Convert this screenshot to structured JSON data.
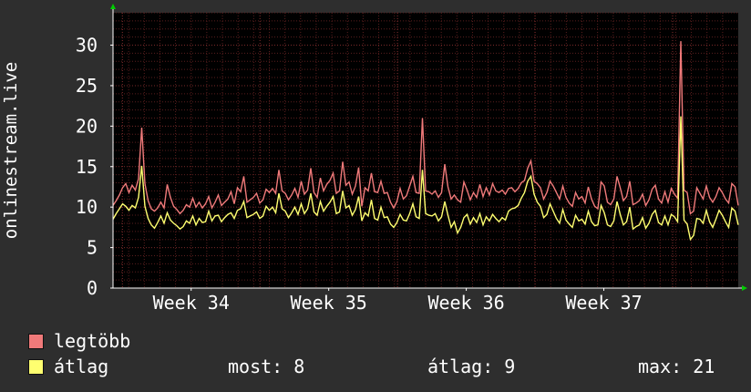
{
  "chart_data": {
    "type": "line",
    "ylabel": "onlinestream.live",
    "ylim": [
      0,
      34
    ],
    "yticks": [
      0,
      5,
      10,
      15,
      20,
      25,
      30
    ],
    "ytick_labels": [
      "0",
      "5",
      "10",
      "15",
      "20",
      "25",
      "30"
    ],
    "xlim": [
      0,
      200
    ],
    "xtick_labels": [
      "Week 34",
      "Week 35",
      "Week 36",
      "Week 37"
    ],
    "xtick_positions": [
      25,
      69,
      113,
      157
    ],
    "grid": true,
    "background": "#000000",
    "grid_color": "#5a1e1e",
    "axis_color": "#ffffff",
    "arrow_color": "#00cc00",
    "series": [
      {
        "name": "legtöbb",
        "color": "#f07a7a",
        "values": [
          10.2,
          10.8,
          11.5,
          12.4,
          12.9,
          11.8,
          12.7,
          12.1,
          13.5,
          19.8,
          12.9,
          10.8,
          9.8,
          9.5,
          9.9,
          10.6,
          9.9,
          12.8,
          11.2,
          10.1,
          9.7,
          9.2,
          9.6,
          10.3,
          10.0,
          11.1,
          10.0,
          10.6,
          9.9,
          10.4,
          11.3,
          9.9,
          10.6,
          11.5,
          10.2,
          10.6,
          11.0,
          11.9,
          10.4,
          12.4,
          11.9,
          13.8,
          10.6,
          10.9,
          11.2,
          11.7,
          10.5,
          10.9,
          12.2,
          11.8,
          12.3,
          11.7,
          14.6,
          12.0,
          11.7,
          10.9,
          11.5,
          12.3,
          11.2,
          13.2,
          11.6,
          12.1,
          14.8,
          11.8,
          11.2,
          13.6,
          12.0,
          12.8,
          13.3,
          14.2,
          11.7,
          12.0,
          15.6,
          12.7,
          13.1,
          11.6,
          12.6,
          14.9,
          10.1,
          12.4,
          12.0,
          14.2,
          11.9,
          11.8,
          13.2,
          11.7,
          11.8,
          10.6,
          9.9,
          10.7,
          12.3,
          11.0,
          11.4,
          12.6,
          13.8,
          11.8,
          11.7,
          21.0,
          12.0,
          11.9,
          11.6,
          12.0,
          11.2,
          11.8,
          15.3,
          12.5,
          11.0,
          11.5,
          10.9,
          10.6,
          13.1,
          12.1,
          10.9,
          11.8,
          11.2,
          12.8,
          11.3,
          12.4,
          11.5,
          12.9,
          12.0,
          11.8,
          12.1,
          11.6,
          12.3,
          12.4,
          11.9,
          12.3,
          13.0,
          13.3,
          14.8,
          15.7,
          13.2,
          12.9,
          12.4,
          11.0,
          11.8,
          13.2,
          12.6,
          11.8,
          11.0,
          12.6,
          11.2,
          10.5,
          10.1,
          11.8,
          11.0,
          11.3,
          10.5,
          12.5,
          11.0,
          10.1,
          9.8,
          13.1,
          12.6,
          10.6,
          10.3,
          11.0,
          13.8,
          12.4,
          10.8,
          11.3,
          13.2,
          10.3,
          10.5,
          10.8,
          11.6,
          10.2,
          10.9,
          12.2,
          12.7,
          11.0,
          10.5,
          11.9,
          10.6,
          12.3,
          11.6,
          11.1,
          30.5,
          12.1,
          11.8,
          9.2,
          9.5,
          12.4,
          11.7,
          11.0,
          12.6,
          11.2,
          10.6,
          11.3,
          12.4,
          11.8,
          11.0,
          10.5,
          12.9,
          12.5,
          10.2
        ],
        "legend_label": "legtöbb"
      },
      {
        "name": "átlag",
        "color": "#ffff70",
        "values": [
          8.5,
          9.2,
          9.8,
          10.4,
          10.1,
          9.6,
          10.2,
          9.9,
          11.2,
          15.1,
          10.1,
          8.6,
          7.8,
          7.4,
          8.1,
          8.9,
          8.0,
          9.3,
          8.4,
          8.0,
          7.7,
          7.3,
          7.6,
          8.3,
          8.0,
          8.9,
          7.8,
          8.6,
          8.1,
          8.2,
          9.5,
          8.3,
          8.9,
          9.0,
          8.2,
          8.7,
          9.1,
          9.3,
          8.6,
          9.6,
          9.8,
          10.7,
          8.7,
          8.9,
          9.1,
          9.4,
          8.6,
          8.9,
          10.1,
          9.6,
          10.0,
          9.3,
          11.7,
          9.8,
          9.5,
          8.7,
          9.3,
          10.0,
          9.1,
          10.4,
          9.2,
          9.8,
          11.7,
          9.4,
          9.0,
          10.7,
          9.5,
          10.1,
          10.6,
          11.3,
          9.2,
          9.4,
          12.0,
          9.9,
          10.2,
          9.0,
          9.7,
          11.3,
          8.3,
          9.3,
          8.9,
          10.9,
          8.6,
          8.4,
          10.0,
          8.7,
          8.8,
          7.9,
          7.5,
          8.1,
          9.1,
          8.4,
          8.3,
          9.2,
          10.4,
          8.8,
          8.6,
          14.6,
          9.2,
          9.0,
          8.9,
          9.2,
          8.3,
          8.8,
          10.7,
          9.0,
          7.5,
          8.2,
          6.8,
          7.5,
          8.7,
          9.1,
          7.9,
          8.7,
          8.1,
          9.2,
          7.8,
          8.8,
          8.3,
          9.1,
          8.6,
          8.2,
          8.7,
          8.4,
          9.5,
          9.8,
          9.9,
          10.2,
          11.1,
          11.8,
          13.2,
          13.8,
          11.6,
          10.6,
          10.1,
          8.7,
          9.1,
          10.4,
          9.5,
          8.6,
          8.0,
          9.7,
          8.4,
          7.9,
          7.5,
          9.0,
          8.3,
          8.5,
          7.9,
          9.5,
          8.2,
          7.7,
          7.8,
          10.2,
          9.3,
          7.8,
          7.6,
          8.3,
          10.7,
          9.1,
          7.8,
          8.2,
          10.0,
          7.3,
          7.6,
          7.8,
          8.7,
          7.4,
          8.0,
          9.1,
          9.6,
          8.1,
          7.8,
          8.9,
          7.8,
          9.1,
          8.8,
          8.2,
          21.2,
          8.4,
          7.9,
          6.0,
          6.5,
          8.6,
          8.5,
          8.0,
          9.6,
          8.2,
          7.5,
          8.5,
          9.6,
          9.0,
          8.2,
          7.5,
          9.9,
          9.5,
          7.8
        ],
        "legend_label": "átlag"
      }
    ]
  },
  "legend": {
    "items": [
      {
        "label": "legtöbb",
        "color": "#f07a7a"
      },
      {
        "label": "átlag",
        "color": "#ffff70"
      }
    ],
    "stats": {
      "most": "most: 8",
      "atlag": "átlag: 9",
      "max": "max: 21"
    }
  }
}
